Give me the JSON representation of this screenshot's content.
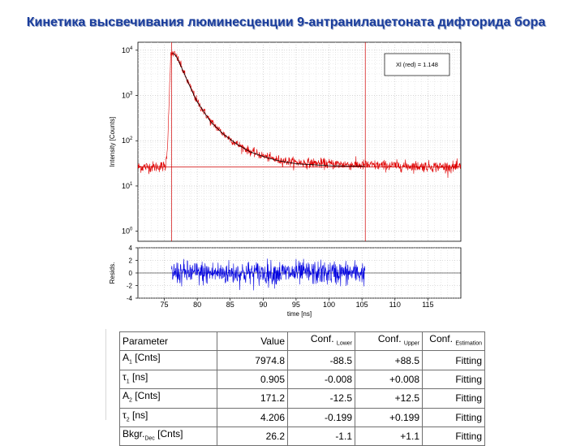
{
  "title": "Кинетика высвечивания люминесценции 9-антранилацетоната дифторида бора",
  "chart_data": [
    {
      "type": "line",
      "ylabel": "Intensity [Counts]",
      "yscale": "log",
      "ylim": [
        0.6,
        15000
      ],
      "xlim": [
        71,
        120
      ],
      "y_ticks": [
        "10⁰",
        "10¹",
        "10²",
        "10³",
        "10⁴"
      ],
      "annotation": "Xl (red) = 1.148",
      "markers_x_ns": [
        76.1,
        105.5
      ],
      "baseline_counts": 26.2,
      "series": [
        {
          "color": "#e00000",
          "x": [
            71,
            75.2,
            75.5,
            75.8,
            76.0,
            76.3,
            76.6,
            77,
            77.5,
            78,
            79,
            80,
            82,
            84,
            86,
            88,
            90,
            92,
            95,
            100,
            105,
            110,
            115,
            120
          ],
          "y": [
            26,
            27,
            80,
            1500,
            7800,
            8700,
            8000,
            6700,
            4600,
            3100,
            1450,
            730,
            270,
            140,
            85,
            58,
            46,
            38,
            33,
            31,
            29,
            28,
            27,
            26
          ]
        },
        {
          "color": "#000000",
          "x": [
            76.3,
            76.6,
            77,
            77.5,
            78,
            79,
            80,
            82,
            84,
            86,
            88,
            90,
            92,
            95,
            100,
            105.5
          ],
          "y": [
            8700,
            7900,
            6600,
            4500,
            3100,
            1450,
            720,
            265,
            138,
            84,
            57,
            45,
            37,
            31,
            28,
            27
          ]
        }
      ]
    },
    {
      "type": "line",
      "xlabel": "time [ns]",
      "ylabel": "Resids.",
      "ylim": [
        -4,
        4
      ],
      "xlim": [
        71,
        120
      ],
      "y_ticks": [
        "4",
        "2",
        "0",
        "-2",
        "-4"
      ],
      "x_ticks": [
        "75",
        "80",
        "85",
        "90",
        "95",
        "100",
        "105",
        "110",
        "115"
      ],
      "series": [
        {
          "color": "#0000e0",
          "x": [
            76.1,
            105.5
          ],
          "y": [
            0,
            0
          ]
        }
      ]
    }
  ],
  "table": {
    "headers": [
      {
        "main": "Parameter",
        "sub": ""
      },
      {
        "main": "Value",
        "sub": ""
      },
      {
        "main": "Conf.",
        "sub": "Lower"
      },
      {
        "main": "Conf.",
        "sub": "Upper"
      },
      {
        "main": "Conf.",
        "sub": "Estimation"
      }
    ],
    "rows": [
      {
        "p": "A",
        "s": "1",
        "u": "[Cnts]",
        "v": "7974.8",
        "lo": "-88.5",
        "up": "+88.5",
        "est": "Fitting"
      },
      {
        "p": "τ",
        "s": "1",
        "u": "[ns]",
        "v": "0.905",
        "lo": "-0.008",
        "up": "+0.008",
        "est": "Fitting"
      },
      {
        "p": "A",
        "s": "2",
        "u": "[Cnts]",
        "v": "171.2",
        "lo": "-12.5",
        "up": "+12.5",
        "est": "Fitting"
      },
      {
        "p": "τ",
        "s": "2",
        "u": "[ns]",
        "v": "4.206",
        "lo": "-0.199",
        "up": "+0.199",
        "est": "Fitting"
      },
      {
        "p": "Bkgr.",
        "s": "Dec",
        "u": "[Cnts]",
        "v": "26.2",
        "lo": "-1.1",
        "up": "+1.1",
        "est": "Fitting"
      }
    ]
  }
}
